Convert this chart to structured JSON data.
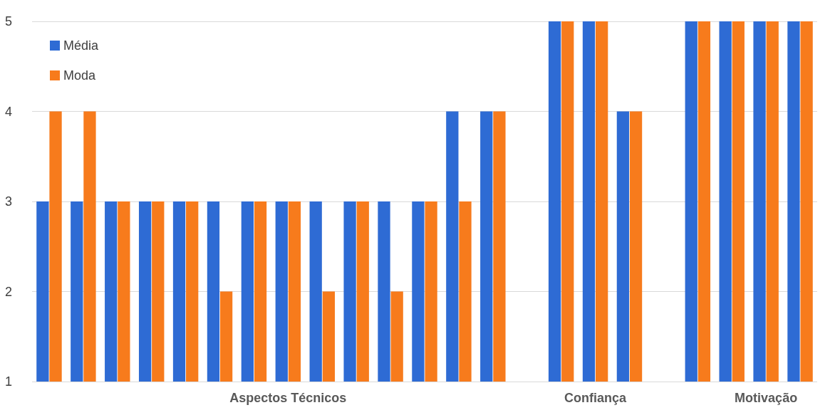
{
  "chart_data": {
    "type": "bar",
    "categories": [
      null,
      null,
      null,
      null,
      null,
      null,
      null,
      "Aspectos Técnicos",
      null,
      null,
      null,
      null,
      null,
      null,
      null,
      null,
      "Confiança",
      null,
      null,
      null,
      null,
      "Motivação",
      null
    ],
    "series": [
      {
        "name": "Média",
        "color": "#2e6bd4",
        "values": [
          3,
          3,
          3,
          3,
          3,
          3,
          3,
          3,
          3,
          3,
          3,
          3,
          4,
          4,
          null,
          5,
          5,
          4,
          null,
          5,
          5,
          5,
          5
        ]
      },
      {
        "name": "Moda",
        "color": "#f77b1c",
        "values": [
          4,
          4,
          3,
          3,
          3,
          2,
          3,
          3,
          2,
          3,
          2,
          3,
          3,
          4,
          null,
          5,
          5,
          4,
          null,
          5,
          5,
          5,
          5
        ]
      }
    ],
    "ylim": [
      1,
      5
    ],
    "yticks": [
      1,
      2,
      3,
      4,
      5
    ],
    "grid": "y",
    "legend": "top left"
  }
}
